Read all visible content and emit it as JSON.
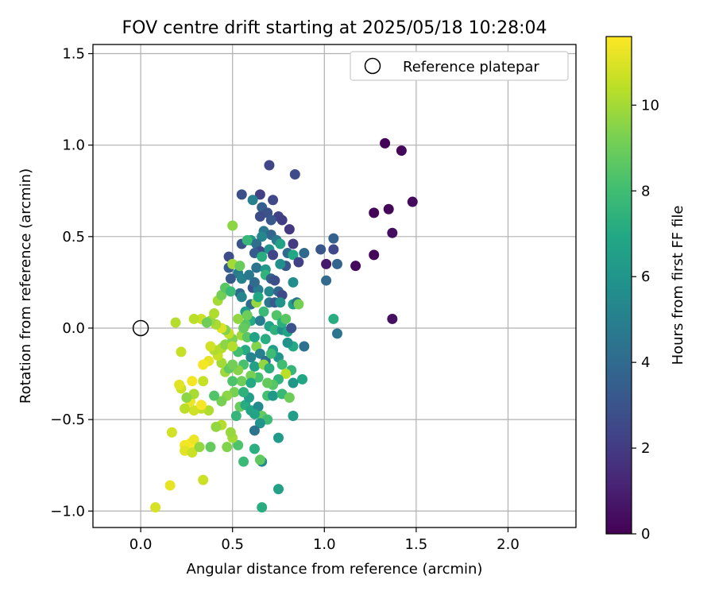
{
  "chart_data": {
    "type": "scatter",
    "title": "FOV centre drift starting at 2025/05/18 10:28:04",
    "xlabel": "Angular distance from reference (arcmin)",
    "ylabel": "Rotation from reference (arcmin)",
    "xlim": [
      -0.26,
      2.37
    ],
    "ylim": [
      -1.09,
      1.55
    ],
    "xticks": [
      0.0,
      0.5,
      1.0,
      1.5,
      2.0
    ],
    "xtick_labels": [
      "0.0",
      "0.5",
      "1.0",
      "1.5",
      "2.0"
    ],
    "yticks": [
      -1.0,
      -0.5,
      0.0,
      0.5,
      1.0,
      1.5
    ],
    "ytick_labels": [
      "−1.0",
      "−0.5",
      "0.0",
      "0.5",
      "1.0",
      "1.5"
    ],
    "grid": true,
    "legend": {
      "position": "top-right",
      "label": "Reference platepar"
    },
    "reference_point": {
      "x": 0.0,
      "y": 0.0
    },
    "colorbar": {
      "label": "Hours from first FF file",
      "colormap": "viridis",
      "range": [
        0,
        11.6
      ],
      "ticks": [
        0,
        2,
        4,
        6,
        8,
        10
      ],
      "tick_labels": [
        "0",
        "2",
        "4",
        "6",
        "8",
        "10"
      ]
    },
    "points": [
      {
        "x": 1.33,
        "y": 1.01,
        "c": 0.1
      },
      {
        "x": 1.42,
        "y": 0.97,
        "c": 0.2
      },
      {
        "x": 1.48,
        "y": 0.69,
        "c": 0.3
      },
      {
        "x": 1.27,
        "y": 0.63,
        "c": 0.1
      },
      {
        "x": 1.35,
        "y": 0.65,
        "c": 0.2
      },
      {
        "x": 1.37,
        "y": 0.52,
        "c": 0.4
      },
      {
        "x": 1.27,
        "y": 0.4,
        "c": 0.2
      },
      {
        "x": 1.17,
        "y": 0.34,
        "c": 0.3
      },
      {
        "x": 1.37,
        "y": 0.05,
        "c": 0.5
      },
      {
        "x": 1.01,
        "y": 0.35,
        "c": 0.8
      },
      {
        "x": 0.7,
        "y": 0.89,
        "c": 2.4
      },
      {
        "x": 0.84,
        "y": 0.84,
        "c": 2.6
      },
      {
        "x": 0.55,
        "y": 0.73,
        "c": 2.8
      },
      {
        "x": 0.65,
        "y": 0.73,
        "c": 2.2
      },
      {
        "x": 0.72,
        "y": 0.7,
        "c": 2.5
      },
      {
        "x": 0.61,
        "y": 0.7,
        "c": 5.0
      },
      {
        "x": 0.66,
        "y": 0.66,
        "c": 3.5
      },
      {
        "x": 0.69,
        "y": 0.63,
        "c": 2.9
      },
      {
        "x": 0.65,
        "y": 0.61,
        "c": 2.7
      },
      {
        "x": 0.75,
        "y": 0.61,
        "c": 2.3
      },
      {
        "x": 0.71,
        "y": 0.59,
        "c": 3.2
      },
      {
        "x": 0.77,
        "y": 0.59,
        "c": 2.1
      },
      {
        "x": 0.81,
        "y": 0.54,
        "c": 1.9
      },
      {
        "x": 0.67,
        "y": 0.53,
        "c": 4.6
      },
      {
        "x": 0.71,
        "y": 0.51,
        "c": 3.8
      },
      {
        "x": 0.66,
        "y": 0.5,
        "c": 5.3
      },
      {
        "x": 0.55,
        "y": 0.46,
        "c": 3.0
      },
      {
        "x": 0.6,
        "y": 0.48,
        "c": 6.1
      },
      {
        "x": 0.63,
        "y": 0.46,
        "c": 4.2
      },
      {
        "x": 0.74,
        "y": 0.48,
        "c": 4.7
      },
      {
        "x": 0.76,
        "y": 0.46,
        "c": 6.6
      },
      {
        "x": 0.83,
        "y": 0.46,
        "c": 2.0
      },
      {
        "x": 0.65,
        "y": 0.42,
        "c": 2.6
      },
      {
        "x": 0.62,
        "y": 0.41,
        "c": 3.3
      },
      {
        "x": 0.7,
        "y": 0.43,
        "c": 5.8
      },
      {
        "x": 0.72,
        "y": 0.4,
        "c": 2.4
      },
      {
        "x": 0.8,
        "y": 0.41,
        "c": 4.1
      },
      {
        "x": 0.83,
        "y": 0.4,
        "c": 6.9
      },
      {
        "x": 0.86,
        "y": 0.36,
        "c": 2.2
      },
      {
        "x": 0.89,
        "y": 0.41,
        "c": 3.9
      },
      {
        "x": 0.98,
        "y": 0.43,
        "c": 3.1
      },
      {
        "x": 1.05,
        "y": 0.49,
        "c": 3.6
      },
      {
        "x": 1.05,
        "y": 0.43,
        "c": 2.5
      },
      {
        "x": 1.07,
        "y": 0.35,
        "c": 3.7
      },
      {
        "x": 1.01,
        "y": 0.26,
        "c": 4.0
      },
      {
        "x": 0.48,
        "y": 0.39,
        "c": 2.7
      },
      {
        "x": 0.48,
        "y": 0.33,
        "c": 3.4
      },
      {
        "x": 0.53,
        "y": 0.3,
        "c": 4.8
      },
      {
        "x": 0.55,
        "y": 0.27,
        "c": 5.1
      },
      {
        "x": 0.49,
        "y": 0.27,
        "c": 3.2
      },
      {
        "x": 0.63,
        "y": 0.33,
        "c": 4.4
      },
      {
        "x": 0.68,
        "y": 0.32,
        "c": 6.2
      },
      {
        "x": 0.68,
        "y": 0.29,
        "c": 7.5
      },
      {
        "x": 0.71,
        "y": 0.27,
        "c": 3.5
      },
      {
        "x": 0.73,
        "y": 0.26,
        "c": 2.8
      },
      {
        "x": 0.83,
        "y": 0.25,
        "c": 5.6
      },
      {
        "x": 0.61,
        "y": 0.22,
        "c": 3.0
      },
      {
        "x": 0.64,
        "y": 0.21,
        "c": 4.9
      },
      {
        "x": 0.7,
        "y": 0.2,
        "c": 5.4
      },
      {
        "x": 0.75,
        "y": 0.2,
        "c": 3.8
      },
      {
        "x": 0.77,
        "y": 0.18,
        "c": 2.6
      },
      {
        "x": 0.54,
        "y": 0.19,
        "c": 3.9
      },
      {
        "x": 0.55,
        "y": 0.17,
        "c": 5.2
      },
      {
        "x": 0.6,
        "y": 0.13,
        "c": 4.0
      },
      {
        "x": 0.63,
        "y": 0.14,
        "c": 9.8
      },
      {
        "x": 0.7,
        "y": 0.14,
        "c": 4.6
      },
      {
        "x": 0.73,
        "y": 0.14,
        "c": 3.3
      },
      {
        "x": 0.76,
        "y": 0.14,
        "c": 5.9
      },
      {
        "x": 0.83,
        "y": 0.13,
        "c": 6.5
      },
      {
        "x": 0.85,
        "y": 0.14,
        "c": 4.4
      },
      {
        "x": 0.57,
        "y": 0.09,
        "c": 6.3
      },
      {
        "x": 0.67,
        "y": 0.09,
        "c": 7.8
      },
      {
        "x": 0.74,
        "y": 0.07,
        "c": 8.4
      },
      {
        "x": 0.6,
        "y": 0.04,
        "c": 7.0
      },
      {
        "x": 0.65,
        "y": 0.04,
        "c": 4.8
      },
      {
        "x": 0.7,
        "y": 0.01,
        "c": 6.7
      },
      {
        "x": 0.73,
        "y": -0.01,
        "c": 7.4
      },
      {
        "x": 0.77,
        "y": -0.01,
        "c": 5.7
      },
      {
        "x": 0.8,
        "y": -0.02,
        "c": 6.8
      },
      {
        "x": 0.82,
        "y": 0.0,
        "c": 3.0
      },
      {
        "x": 1.05,
        "y": 0.05,
        "c": 7.2
      },
      {
        "x": 1.07,
        "y": -0.03,
        "c": 4.5
      },
      {
        "x": 0.89,
        "y": -0.1,
        "c": 4.3
      },
      {
        "x": 0.83,
        "y": -0.1,
        "c": 7.0
      },
      {
        "x": 0.72,
        "y": -0.12,
        "c": 6.4
      },
      {
        "x": 0.63,
        "y": -0.1,
        "c": 9.4
      },
      {
        "x": 0.57,
        "y": -0.12,
        "c": 7.1
      },
      {
        "x": 0.6,
        "y": -0.16,
        "c": 5.3
      },
      {
        "x": 0.65,
        "y": -0.14,
        "c": 5.0
      },
      {
        "x": 0.68,
        "y": -0.18,
        "c": 4.2
      },
      {
        "x": 0.75,
        "y": -0.16,
        "c": 6.0
      },
      {
        "x": 0.56,
        "y": -0.2,
        "c": 8.2
      },
      {
        "x": 0.62,
        "y": -0.21,
        "c": 6.6
      },
      {
        "x": 0.67,
        "y": -0.2,
        "c": 9.7
      },
      {
        "x": 0.7,
        "y": -0.22,
        "c": 7.3
      },
      {
        "x": 0.77,
        "y": -0.2,
        "c": 8.0
      },
      {
        "x": 0.82,
        "y": -0.23,
        "c": 7.6
      },
      {
        "x": 0.79,
        "y": -0.25,
        "c": 10.4
      },
      {
        "x": 0.88,
        "y": -0.28,
        "c": 6.9
      },
      {
        "x": 0.83,
        "y": -0.3,
        "c": 6.1
      },
      {
        "x": 0.75,
        "y": -0.28,
        "c": 7.5
      },
      {
        "x": 0.72,
        "y": -0.31,
        "c": 8.5
      },
      {
        "x": 0.69,
        "y": -0.3,
        "c": 8.8
      },
      {
        "x": 0.64,
        "y": -0.27,
        "c": 8.1
      },
      {
        "x": 0.6,
        "y": -0.26,
        "c": 9.2
      },
      {
        "x": 0.55,
        "y": -0.29,
        "c": 9.0
      },
      {
        "x": 0.5,
        "y": -0.29,
        "c": 8.3
      },
      {
        "x": 0.46,
        "y": -0.24,
        "c": 9.9
      },
      {
        "x": 0.53,
        "y": -0.23,
        "c": 9.5
      },
      {
        "x": 0.48,
        "y": -0.22,
        "c": 8.7
      },
      {
        "x": 0.5,
        "y": -0.2,
        "c": 9.1
      },
      {
        "x": 0.44,
        "y": -0.19,
        "c": 10.0
      },
      {
        "x": 0.42,
        "y": -0.15,
        "c": 10.6
      },
      {
        "x": 0.4,
        "y": -0.12,
        "c": 10.2
      },
      {
        "x": 0.38,
        "y": -0.1,
        "c": 10.8
      },
      {
        "x": 0.37,
        "y": -0.18,
        "c": 11.2
      },
      {
        "x": 0.34,
        "y": -0.2,
        "c": 11.4
      },
      {
        "x": 0.44,
        "y": -0.11,
        "c": 10.3
      },
      {
        "x": 0.46,
        "y": -0.09,
        "c": 9.6
      },
      {
        "x": 0.5,
        "y": -0.06,
        "c": 9.3
      },
      {
        "x": 0.48,
        "y": -0.03,
        "c": 10.5
      },
      {
        "x": 0.46,
        "y": -0.01,
        "c": 9.4
      },
      {
        "x": 0.44,
        "y": 0.0,
        "c": 11.0
      },
      {
        "x": 0.41,
        "y": 0.02,
        "c": 10.1
      },
      {
        "x": 0.38,
        "y": 0.04,
        "c": 9.8
      },
      {
        "x": 0.33,
        "y": 0.05,
        "c": 10.7
      },
      {
        "x": 0.29,
        "y": 0.05,
        "c": 10.4
      },
      {
        "x": 0.19,
        "y": 0.03,
        "c": 10.3
      },
      {
        "x": 0.22,
        "y": -0.13,
        "c": 10.6
      },
      {
        "x": 0.36,
        "y": 0.03,
        "c": 9.0
      },
      {
        "x": 0.4,
        "y": 0.08,
        "c": 10.2
      },
      {
        "x": 0.42,
        "y": 0.15,
        "c": 10.0
      },
      {
        "x": 0.44,
        "y": 0.18,
        "c": 9.1
      },
      {
        "x": 0.46,
        "y": 0.22,
        "c": 8.6
      },
      {
        "x": 0.49,
        "y": 0.2,
        "c": 7.8
      },
      {
        "x": 0.5,
        "y": 0.35,
        "c": 10.0
      },
      {
        "x": 0.5,
        "y": 0.56,
        "c": 9.6
      },
      {
        "x": 0.58,
        "y": 0.48,
        "c": 7.7
      },
      {
        "x": 0.54,
        "y": 0.34,
        "c": 8.9
      },
      {
        "x": 0.57,
        "y": 0.02,
        "c": 8.5
      },
      {
        "x": 0.53,
        "y": 0.05,
        "c": 9.7
      },
      {
        "x": 0.55,
        "y": -0.04,
        "c": 9.9
      },
      {
        "x": 0.53,
        "y": -0.13,
        "c": 8.0
      },
      {
        "x": 0.58,
        "y": -0.05,
        "c": 8.6
      },
      {
        "x": 0.5,
        "y": -0.1,
        "c": 10.3
      },
      {
        "x": 0.51,
        "y": -0.35,
        "c": 9.2
      },
      {
        "x": 0.47,
        "y": -0.37,
        "c": 9.6
      },
      {
        "x": 0.54,
        "y": -0.43,
        "c": 8.9
      },
      {
        "x": 0.52,
        "y": -0.48,
        "c": 7.6
      },
      {
        "x": 0.57,
        "y": -0.42,
        "c": 7.1
      },
      {
        "x": 0.59,
        "y": -0.38,
        "c": 6.5
      },
      {
        "x": 0.56,
        "y": -0.35,
        "c": 7.4
      },
      {
        "x": 0.6,
        "y": -0.45,
        "c": 6.8
      },
      {
        "x": 0.64,
        "y": -0.43,
        "c": 5.5
      },
      {
        "x": 0.66,
        "y": -0.48,
        "c": 8.8
      },
      {
        "x": 0.69,
        "y": -0.5,
        "c": 7.9
      },
      {
        "x": 0.65,
        "y": -0.52,
        "c": 6.0
      },
      {
        "x": 0.62,
        "y": -0.56,
        "c": 4.4
      },
      {
        "x": 0.66,
        "y": -0.73,
        "c": 5.4
      },
      {
        "x": 0.65,
        "y": -0.72,
        "c": 8.7
      },
      {
        "x": 0.75,
        "y": -0.6,
        "c": 6.3
      },
      {
        "x": 0.75,
        "y": -0.88,
        "c": 6.6
      },
      {
        "x": 0.66,
        "y": -0.98,
        "c": 7.2
      },
      {
        "x": 0.56,
        "y": -0.73,
        "c": 7.8
      },
      {
        "x": 0.53,
        "y": -0.64,
        "c": 8.3
      },
      {
        "x": 0.5,
        "y": -0.6,
        "c": 10.0
      },
      {
        "x": 0.47,
        "y": -0.65,
        "c": 9.4
      },
      {
        "x": 0.49,
        "y": -0.57,
        "c": 9.8
      },
      {
        "x": 0.44,
        "y": -0.53,
        "c": 10.3
      },
      {
        "x": 0.41,
        "y": -0.54,
        "c": 9.7
      },
      {
        "x": 0.44,
        "y": -0.4,
        "c": 9.2
      },
      {
        "x": 0.4,
        "y": -0.37,
        "c": 8.4
      },
      {
        "x": 0.37,
        "y": -0.45,
        "c": 10.2
      },
      {
        "x": 0.33,
        "y": -0.44,
        "c": 10.5
      },
      {
        "x": 0.29,
        "y": -0.45,
        "c": 10.8
      },
      {
        "x": 0.27,
        "y": -0.4,
        "c": 11.3
      },
      {
        "x": 0.29,
        "y": -0.36,
        "c": 10.1
      },
      {
        "x": 0.33,
        "y": -0.42,
        "c": 11.5
      },
      {
        "x": 0.24,
        "y": -0.44,
        "c": 10.4
      },
      {
        "x": 0.22,
        "y": -0.33,
        "c": 10.7
      },
      {
        "x": 0.21,
        "y": -0.31,
        "c": 11.1
      },
      {
        "x": 0.28,
        "y": -0.29,
        "c": 11.4
      },
      {
        "x": 0.34,
        "y": -0.29,
        "c": 10.6
      },
      {
        "x": 0.25,
        "y": -0.38,
        "c": 9.6
      },
      {
        "x": 0.28,
        "y": -0.65,
        "c": 10.9
      },
      {
        "x": 0.27,
        "y": -0.63,
        "c": 11.6
      },
      {
        "x": 0.24,
        "y": -0.64,
        "c": 11.4
      },
      {
        "x": 0.24,
        "y": -0.67,
        "c": 11.1
      },
      {
        "x": 0.28,
        "y": -0.68,
        "c": 10.7
      },
      {
        "x": 0.29,
        "y": -0.61,
        "c": 11.3
      },
      {
        "x": 0.32,
        "y": -0.65,
        "c": 9.7
      },
      {
        "x": 0.38,
        "y": -0.65,
        "c": 8.8
      },
      {
        "x": 0.17,
        "y": -0.57,
        "c": 10.8
      },
      {
        "x": 0.16,
        "y": -0.86,
        "c": 11.2
      },
      {
        "x": 0.34,
        "y": -0.83,
        "c": 10.7
      },
      {
        "x": 0.08,
        "y": -0.98,
        "c": 10.9
      },
      {
        "x": 0.62,
        "y": -0.66,
        "c": 7.3
      },
      {
        "x": 0.62,
        "y": -0.47,
        "c": 6.7
      },
      {
        "x": 0.6,
        "y": -0.3,
        "c": 7.0
      },
      {
        "x": 0.69,
        "y": -0.37,
        "c": 8.1
      },
      {
        "x": 0.72,
        "y": -0.37,
        "c": 6.2
      },
      {
        "x": 0.77,
        "y": -0.36,
        "c": 7.7
      },
      {
        "x": 0.81,
        "y": -0.38,
        "c": 9.0
      },
      {
        "x": 0.83,
        "y": -0.48,
        "c": 6.4
      },
      {
        "x": 0.71,
        "y": -0.14,
        "c": 7.9
      },
      {
        "x": 0.8,
        "y": -0.08,
        "c": 5.9
      },
      {
        "x": 0.77,
        "y": 0.03,
        "c": 7.3
      },
      {
        "x": 0.86,
        "y": 0.13,
        "c": 9.2
      },
      {
        "x": 0.79,
        "y": 0.05,
        "c": 8.6
      },
      {
        "x": 0.68,
        "y": -0.06,
        "c": 7.2
      },
      {
        "x": 0.62,
        "y": -0.05,
        "c": 6.7
      },
      {
        "x": 0.56,
        "y": 0.0,
        "c": 8.8
      },
      {
        "x": 0.58,
        "y": 0.07,
        "c": 9.0
      },
      {
        "x": 0.59,
        "y": 0.29,
        "c": 4.7
      },
      {
        "x": 0.62,
        "y": 0.25,
        "c": 4.1
      },
      {
        "x": 0.64,
        "y": 0.17,
        "c": 6.9
      },
      {
        "x": 0.66,
        "y": 0.39,
        "c": 7.2
      },
      {
        "x": 0.79,
        "y": 0.34,
        "c": 3.1
      },
      {
        "x": 0.76,
        "y": 0.35,
        "c": 5.7
      }
    ]
  }
}
